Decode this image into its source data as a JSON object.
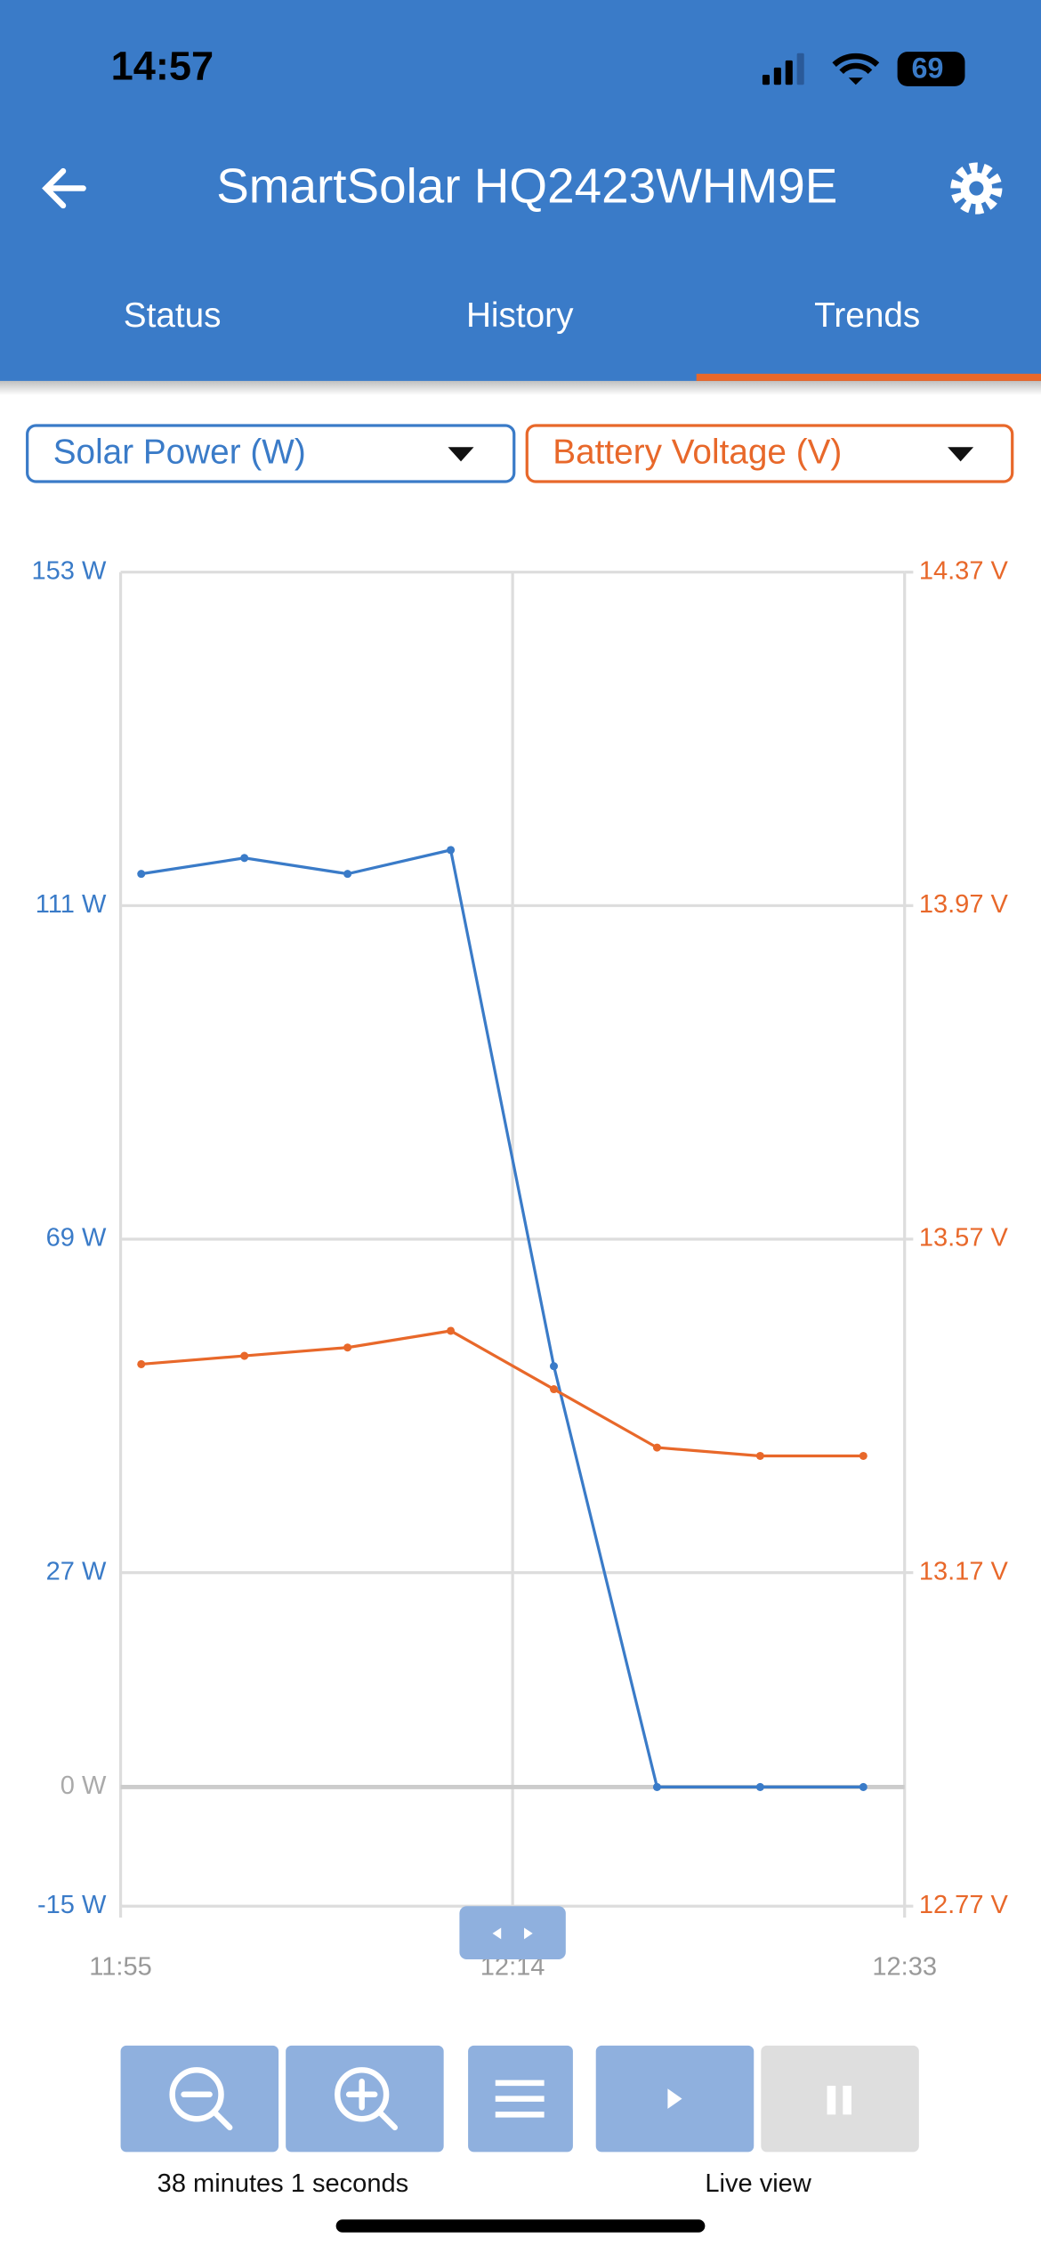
{
  "status_bar": {
    "time": "14:57",
    "battery": "69"
  },
  "header": {
    "title": "SmartSolar HQ2423WHM9E"
  },
  "tabs": [
    "Status",
    "History",
    "Trends"
  ],
  "selectors": [
    "Solar Power (W)",
    "Battery Voltage (V)"
  ],
  "chart_data": {
    "type": "line",
    "x": [
      "11:56",
      "12:01",
      "12:06",
      "12:11",
      "12:16",
      "12:21",
      "12:26",
      "12:31"
    ],
    "xlim": [
      "11:55",
      "12:33"
    ],
    "xticks": [
      "11:55",
      "12:14",
      "12:33"
    ],
    "series": [
      {
        "name": "Solar Power (W)",
        "color": "#3a7bc8",
        "values": [
          115,
          117,
          115,
          118,
          53,
          0,
          0,
          0
        ]
      },
      {
        "name": "Battery Voltage (V)",
        "color": "#e8682a",
        "axis": "y2",
        "values": [
          13.42,
          13.43,
          13.44,
          13.46,
          13.39,
          13.32,
          13.31,
          13.31
        ]
      }
    ],
    "ylim": [
      -15,
      153
    ],
    "yticks": [
      {
        "value": 153,
        "label": "153 W"
      },
      {
        "value": 111,
        "label": "111 W"
      },
      {
        "value": 69,
        "label": "69 W"
      },
      {
        "value": 27,
        "label": "27 W"
      },
      {
        "value": 0,
        "label": "0 W"
      },
      {
        "value": -15,
        "label": "-15 W"
      }
    ],
    "y2lim": [
      12.77,
      14.37
    ],
    "y2ticks": [
      {
        "value": 14.37,
        "label": "14.37 V"
      },
      {
        "value": 13.97,
        "label": "13.97 V"
      },
      {
        "value": 13.57,
        "label": "13.57 V"
      },
      {
        "value": 13.17,
        "label": "13.17 V"
      },
      {
        "value": 12.77,
        "label": "12.77 V"
      }
    ],
    "grid": true
  },
  "controls": {
    "duration": "38 minutes 1 seconds",
    "live": "Live view"
  }
}
